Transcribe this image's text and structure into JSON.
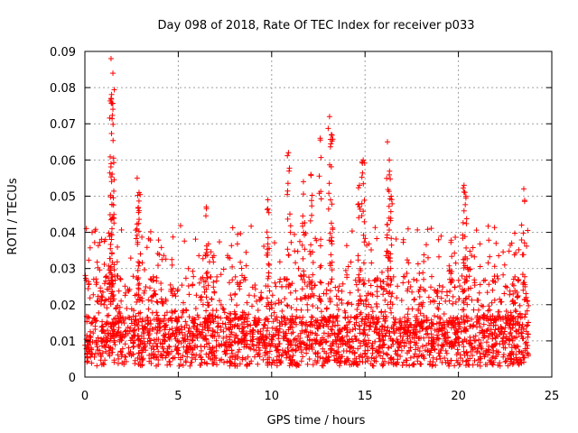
{
  "chart_data": {
    "type": "scatter",
    "title": "Day 098 of 2018, Rate Of TEC Index for receiver p033",
    "xlabel": "GPS time / hours",
    "ylabel": "ROTI / TECUs",
    "xlim": [
      0,
      25
    ],
    "ylim": [
      0,
      0.09
    ],
    "xticks": [
      0,
      5,
      10,
      15,
      20,
      25
    ],
    "yticks": [
      0,
      0.01,
      0.02,
      0.03,
      0.04,
      0.05,
      0.06,
      0.07,
      0.08,
      0.09
    ],
    "xtick_labels": [
      "0",
      "5",
      "10",
      "15",
      "20",
      "25"
    ],
    "ytick_labels": [
      "0",
      "0.01",
      "0.02",
      "0.03",
      "0.04",
      "0.05",
      "0.06",
      "0.07",
      "0.08",
      "0.09"
    ],
    "grid": true,
    "marker": "+",
    "series": [
      {
        "name": "ROTI",
        "color": "#ff0000",
        "x_range": [
          0,
          23.75
        ],
        "typical_range": [
          0.003,
          0.03
        ],
        "peaks": [
          {
            "x": 1.4,
            "y": 0.088
          },
          {
            "x": 1.5,
            "y": 0.084
          },
          {
            "x": 1.4,
            "y": 0.077
          },
          {
            "x": 1.5,
            "y": 0.074
          },
          {
            "x": 1.4,
            "y": 0.059
          },
          {
            "x": 2.8,
            "y": 0.055
          },
          {
            "x": 2.9,
            "y": 0.051
          },
          {
            "x": 6.5,
            "y": 0.047
          },
          {
            "x": 9.8,
            "y": 0.049
          },
          {
            "x": 10.9,
            "y": 0.062
          },
          {
            "x": 11.7,
            "y": 0.054
          },
          {
            "x": 12.1,
            "y": 0.056
          },
          {
            "x": 12.6,
            "y": 0.066
          },
          {
            "x": 13.1,
            "y": 0.072
          },
          {
            "x": 13.2,
            "y": 0.067
          },
          {
            "x": 14.9,
            "y": 0.06
          },
          {
            "x": 14.7,
            "y": 0.053
          },
          {
            "x": 16.2,
            "y": 0.065
          },
          {
            "x": 16.3,
            "y": 0.06
          },
          {
            "x": 16.4,
            "y": 0.05
          },
          {
            "x": 20.3,
            "y": 0.053
          },
          {
            "x": 20.4,
            "y": 0.05
          },
          {
            "x": 23.5,
            "y": 0.052
          }
        ]
      }
    ]
  }
}
